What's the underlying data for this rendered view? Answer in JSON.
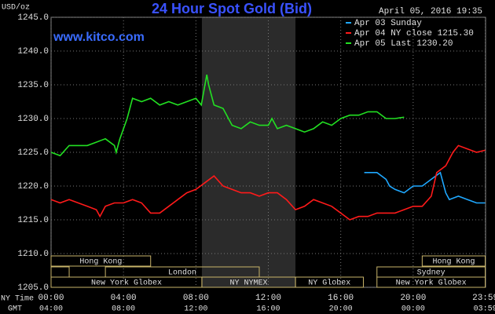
{
  "chart_data": {
    "type": "line",
    "title": "24 Hour Spot Gold (Bid)",
    "date_label": "April 05, 2016 19:35",
    "source": "www.kitco.com",
    "y_label": "USD/oz",
    "x_label": "NY Time",
    "x2_label": "GMT",
    "xlim": [
      0,
      24
    ],
    "ylim": [
      1205,
      1245
    ],
    "xticks": [
      {
        "value": 0,
        "label": "00:00"
      },
      {
        "value": 4,
        "label": "04:00"
      },
      {
        "value": 8,
        "label": "08:00"
      },
      {
        "value": 12,
        "label": "12:00"
      },
      {
        "value": 16,
        "label": "16:00"
      },
      {
        "value": 20,
        "label": "20:00"
      },
      {
        "value": 23.983,
        "label": "23:59"
      }
    ],
    "x2tick_labels": [
      "04:00",
      "08:00",
      "12:00",
      "16:00",
      "20:00",
      "00:00",
      "03:59"
    ],
    "yticks": [
      {
        "value": 1205,
        "label": "1205.0"
      },
      {
        "value": 1210,
        "label": "1210.0"
      },
      {
        "value": 1215,
        "label": "1215.0"
      },
      {
        "value": 1220,
        "label": "1220.0"
      },
      {
        "value": 1225,
        "label": "1225.0"
      },
      {
        "value": 1230,
        "label": "1230.0"
      },
      {
        "value": 1235,
        "label": "1235.0"
      },
      {
        "value": 1240,
        "label": "1240.0"
      },
      {
        "value": 1245,
        "label": "1245.0"
      }
    ],
    "grid": true,
    "highlight": [
      8.33,
      13.5
    ],
    "series": [
      {
        "name": "Apr 03 Sunday",
        "color": "#1fa8ff",
        "x": [
          17.3,
          18,
          18.5,
          18.7,
          19,
          19.5,
          20,
          20.5,
          21,
          21.5,
          21.8,
          22,
          22.5,
          23,
          23.5,
          23.98
        ],
        "values": [
          1222,
          1222,
          1221,
          1220,
          1219.5,
          1219,
          1220,
          1220,
          1221,
          1222,
          1219,
          1218,
          1218.5,
          1218,
          1217.5,
          1217.5
        ]
      },
      {
        "name": "Apr 04 NY close 1215.30",
        "color": "#ff1a1a",
        "x": [
          0,
          0.5,
          1,
          1.5,
          2,
          2.5,
          2.7,
          3,
          3.5,
          4,
          4.5,
          5,
          5.5,
          6,
          6.5,
          7,
          7.5,
          8,
          8.5,
          9,
          9.5,
          10,
          10.5,
          11,
          11.5,
          12,
          12.5,
          13,
          13.5,
          14,
          14.5,
          15,
          15.5,
          16,
          16.5,
          17,
          17.5,
          18,
          18.5,
          19,
          19.5,
          20,
          20.5,
          21,
          21.3,
          21.8,
          22.2,
          22.5,
          23,
          23.5,
          23.98
        ],
        "values": [
          1218,
          1217.5,
          1218,
          1217.5,
          1217,
          1216.5,
          1215.5,
          1217,
          1217.5,
          1217.5,
          1218,
          1217.5,
          1216,
          1216,
          1217,
          1218,
          1219,
          1219.5,
          1220.5,
          1221.5,
          1220,
          1219.5,
          1219,
          1219,
          1218.5,
          1219,
          1219,
          1218,
          1216.5,
          1217,
          1218,
          1217.5,
          1217,
          1216,
          1215,
          1215.5,
          1215.5,
          1216,
          1216,
          1216,
          1216.5,
          1217,
          1217,
          1218.5,
          1222,
          1223,
          1225,
          1226,
          1225.5,
          1225,
          1225.3
        ]
      },
      {
        "name": "Apr 05 Last 1230.20",
        "color": "#22e022",
        "x": [
          0,
          0.5,
          1,
          2,
          2.5,
          3,
          3.5,
          3.6,
          3.8,
          4.2,
          4.5,
          5,
          5.5,
          6,
          6.5,
          7,
          7.5,
          8,
          8.3,
          8.6,
          8.7,
          9,
          9.5,
          10,
          10.5,
          11,
          11.5,
          12,
          12.2,
          12.5,
          13,
          13.5,
          14,
          14.5,
          15,
          15.5,
          16,
          16.5,
          17,
          17.5,
          18,
          18.5,
          19,
          19.5
        ],
        "values": [
          1225,
          1224.5,
          1226,
          1226,
          1226.5,
          1227,
          1226,
          1225,
          1227,
          1230,
          1233,
          1232.5,
          1233,
          1232,
          1232.5,
          1232,
          1232.5,
          1233,
          1232,
          1236.5,
          1235,
          1232,
          1231.5,
          1229,
          1228.5,
          1229.5,
          1229,
          1229,
          1230,
          1228.5,
          1229,
          1228.5,
          1228,
          1228.5,
          1229.5,
          1229,
          1230,
          1230.5,
          1230.5,
          1231,
          1231,
          1230,
          1230,
          1230.2
        ]
      }
    ],
    "session_rows": [
      [
        {
          "label": "Hong Kong",
          "start": 0,
          "end": 5.5
        },
        {
          "label": "Hong Kong",
          "start": 20.5,
          "end": 23.98
        }
      ],
      [
        {
          "label": null,
          "start": 0,
          "end": 1
        },
        {
          "label": "London",
          "start": 3,
          "end": 11.5
        },
        {
          "label": "Sydney",
          "start": 18,
          "end": 23.98
        }
      ],
      [
        {
          "label": "New York Globex",
          "start": 0,
          "end": 8.33
        },
        {
          "label": "NY NYMEX",
          "start": 8.33,
          "end": 13.5
        },
        {
          "label": "NY Globex",
          "start": 13.5,
          "end": 17.25
        },
        {
          "label": "New York Globex",
          "start": 18,
          "end": 23.98
        }
      ]
    ]
  }
}
